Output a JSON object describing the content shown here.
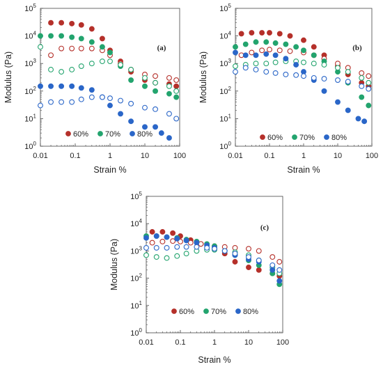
{
  "colors": {
    "s60": "#b5302a",
    "s70": "#23a46e",
    "s80": "#2a66c8",
    "axis": "#444444"
  },
  "chart_data": [
    {
      "type": "scatter",
      "panel_label": "(a)",
      "xlabel": "Strain %",
      "ylabel": "Modulus (Pa)",
      "x_scale": "log",
      "y_scale": "log",
      "xlim": [
        0.01,
        100
      ],
      "ylim": [
        1,
        100000
      ],
      "x_ticks": [
        "0.01",
        "0.1",
        "1",
        "10",
        "100"
      ],
      "y_ticks": [
        [
          "10",
          "0"
        ],
        [
          "10",
          "1"
        ],
        [
          "10",
          "2"
        ],
        [
          "10",
          "3"
        ],
        [
          "10",
          "4"
        ],
        [
          "10",
          "5"
        ]
      ],
      "legend": [
        "60%",
        "70%",
        "80%"
      ],
      "series": [
        {
          "name": "60%",
          "color_key": "s60",
          "filled": true,
          "x": [
            0.02,
            0.04,
            0.08,
            0.15,
            0.3,
            0.6,
            1,
            2,
            4,
            10,
            20,
            50,
            80
          ],
          "y": [
            30000,
            30000,
            28000,
            25000,
            18000,
            8000,
            3000,
            1200,
            500,
            250,
            200,
            180,
            150
          ]
        },
        {
          "name": "60%",
          "color_key": "s60",
          "filled": false,
          "x": [
            0.02,
            0.04,
            0.08,
            0.15,
            0.3,
            0.6,
            1,
            2,
            4,
            10,
            20,
            50,
            80
          ],
          "y": [
            2000,
            3500,
            3500,
            3500,
            3500,
            3000,
            2000,
            1000,
            600,
            400,
            350,
            300,
            250
          ]
        },
        {
          "name": "70%",
          "color_key": "s70",
          "filled": true,
          "x": [
            0.01,
            0.02,
            0.04,
            0.08,
            0.15,
            0.3,
            0.6,
            1,
            2,
            4,
            10,
            20,
            50,
            80
          ],
          "y": [
            10000,
            10000,
            10000,
            9000,
            8000,
            6000,
            4000,
            2500,
            800,
            250,
            150,
            100,
            80,
            60
          ]
        },
        {
          "name": "70%",
          "color_key": "s70",
          "filled": false,
          "x": [
            0.01,
            0.02,
            0.04,
            0.08,
            0.15,
            0.3,
            0.6,
            1,
            2,
            4,
            10,
            20,
            50,
            80
          ],
          "y": [
            4000,
            600,
            500,
            600,
            800,
            1000,
            1200,
            1200,
            900,
            600,
            300,
            200,
            150,
            100
          ]
        },
        {
          "name": "80%",
          "color_key": "s80",
          "filled": true,
          "x": [
            0.01,
            0.02,
            0.04,
            0.08,
            0.15,
            0.3,
            0.6,
            1,
            2,
            4,
            10,
            20,
            30,
            50
          ],
          "y": [
            150,
            150,
            150,
            150,
            130,
            110,
            60,
            30,
            15,
            8,
            5,
            5,
            3,
            2
          ]
        },
        {
          "name": "80%",
          "color_key": "s80",
          "filled": false,
          "x": [
            0.01,
            0.02,
            0.04,
            0.08,
            0.15,
            0.3,
            0.6,
            1,
            2,
            4,
            10,
            20,
            50,
            80
          ],
          "y": [
            30,
            40,
            40,
            40,
            50,
            60,
            60,
            55,
            45,
            35,
            25,
            22,
            15,
            10
          ]
        }
      ]
    },
    {
      "type": "scatter",
      "panel_label": "(b)",
      "xlabel": "Strain %",
      "ylabel": "Modulus (Pa)",
      "x_scale": "log",
      "y_scale": "log",
      "xlim": [
        0.01,
        100
      ],
      "ylim": [
        1,
        100000
      ],
      "x_ticks": [
        "0.01",
        "0.1",
        "1",
        "10",
        "100"
      ],
      "y_ticks": [
        [
          "10",
          "0"
        ],
        [
          "10",
          "1"
        ],
        [
          "10",
          "2"
        ],
        [
          "10",
          "3"
        ],
        [
          "10",
          "4"
        ],
        [
          "10",
          "5"
        ]
      ],
      "legend": [
        "60%",
        "70%",
        "80%"
      ],
      "series": [
        {
          "name": "60%",
          "color_key": "s60",
          "filled": true,
          "x": [
            0.015,
            0.03,
            0.06,
            0.1,
            0.2,
            0.4,
            1,
            2,
            4,
            10,
            20,
            50,
            80
          ],
          "y": [
            12000,
            13000,
            13000,
            13000,
            12000,
            10000,
            7000,
            4000,
            2000,
            800,
            400,
            200,
            150
          ]
        },
        {
          "name": "60%",
          "color_key": "s60",
          "filled": false,
          "x": [
            0.015,
            0.03,
            0.06,
            0.1,
            0.2,
            0.4,
            1,
            2,
            4,
            10,
            20,
            50,
            80
          ],
          "y": [
            2000,
            2500,
            3000,
            3200,
            3000,
            2800,
            2500,
            2000,
            1500,
            1000,
            700,
            450,
            350
          ]
        },
        {
          "name": "70%",
          "color_key": "s70",
          "filled": true,
          "x": [
            0.01,
            0.02,
            0.04,
            0.08,
            0.15,
            0.3,
            0.6,
            1,
            2,
            4,
            10,
            20,
            50,
            80
          ],
          "y": [
            4000,
            5000,
            6000,
            6000,
            5500,
            5000,
            4000,
            3000,
            2000,
            1200,
            500,
            200,
            60,
            30
          ]
        },
        {
          "name": "70%",
          "color_key": "s70",
          "filled": false,
          "x": [
            0.01,
            0.02,
            0.04,
            0.08,
            0.15,
            0.3,
            0.6,
            1,
            2,
            4,
            10,
            20,
            50,
            80
          ],
          "y": [
            800,
            900,
            1000,
            1000,
            1100,
            1200,
            1200,
            1100,
            1000,
            900,
            700,
            500,
            300,
            200
          ]
        },
        {
          "name": "80%",
          "color_key": "s80",
          "filled": true,
          "x": [
            0.01,
            0.02,
            0.04,
            0.08,
            0.15,
            0.3,
            0.6,
            1,
            2,
            4,
            10,
            20,
            40,
            60
          ],
          "y": [
            2500,
            2000,
            2000,
            2200,
            2000,
            1500,
            900,
            500,
            250,
            100,
            40,
            20,
            10,
            8
          ]
        },
        {
          "name": "80%",
          "color_key": "s80",
          "filled": false,
          "x": [
            0.01,
            0.02,
            0.04,
            0.08,
            0.15,
            0.3,
            0.6,
            1,
            2,
            4,
            10,
            20,
            50,
            80
          ],
          "y": [
            500,
            700,
            600,
            500,
            450,
            400,
            380,
            350,
            300,
            280,
            250,
            220,
            150,
            120
          ]
        }
      ]
    },
    {
      "type": "scatter",
      "panel_label": "(c)",
      "xlabel": "Strain %",
      "ylabel": "Modulus (Pa)",
      "x_scale": "log",
      "y_scale": "log",
      "xlim": [
        0.01,
        100
      ],
      "ylim": [
        1,
        100000
      ],
      "x_ticks": [
        "0.01",
        "0.1",
        "1",
        "10",
        "100"
      ],
      "y_ticks": [
        [
          "10",
          "0"
        ],
        [
          "10",
          "1"
        ],
        [
          "10",
          "2"
        ],
        [
          "10",
          "3"
        ],
        [
          "10",
          "4"
        ],
        [
          "10",
          "5"
        ]
      ],
      "legend": [
        "60%",
        "70%",
        "80%"
      ],
      "series": [
        {
          "name": "60%",
          "color_key": "s60",
          "filled": true,
          "x": [
            0.015,
            0.03,
            0.06,
            0.1,
            0.2,
            0.4,
            1,
            2,
            4,
            10,
            20,
            50,
            80
          ],
          "y": [
            5000,
            5000,
            4500,
            3500,
            2500,
            1800,
            1200,
            800,
            400,
            250,
            200,
            150,
            120
          ]
        },
        {
          "name": "60%",
          "color_key": "s60",
          "filled": false,
          "x": [
            0.015,
            0.03,
            0.06,
            0.1,
            0.2,
            0.4,
            1,
            2,
            4,
            10,
            20,
            50,
            80
          ],
          "y": [
            2000,
            2200,
            2300,
            2200,
            2000,
            1800,
            1500,
            1400,
            1300,
            1200,
            1000,
            600,
            400
          ]
        },
        {
          "name": "70%",
          "color_key": "s70",
          "filled": true,
          "x": [
            0.01,
            0.02,
            0.04,
            0.08,
            0.15,
            0.3,
            0.6,
            1,
            2,
            4,
            10,
            20,
            50,
            80
          ],
          "y": [
            3500,
            3500,
            3200,
            3000,
            2600,
            2200,
            1800,
            1500,
            1000,
            700,
            450,
            300,
            150,
            60
          ]
        },
        {
          "name": "70%",
          "color_key": "s70",
          "filled": false,
          "x": [
            0.01,
            0.02,
            0.04,
            0.08,
            0.15,
            0.3,
            0.6,
            1,
            2,
            4,
            10,
            20,
            50,
            80
          ],
          "y": [
            700,
            600,
            550,
            650,
            800,
            1000,
            1100,
            1100,
            1000,
            900,
            700,
            450,
            250,
            150
          ]
        },
        {
          "name": "80%",
          "color_key": "s80",
          "filled": true,
          "x": [
            0.01,
            0.02,
            0.04,
            0.08,
            0.15,
            0.3,
            0.6,
            1,
            2,
            4,
            10,
            20,
            50,
            80
          ],
          "y": [
            3000,
            3500,
            3200,
            2800,
            2400,
            2000,
            1600,
            1300,
            1000,
            700,
            500,
            400,
            200,
            80
          ]
        },
        {
          "name": "80%",
          "color_key": "s80",
          "filled": false,
          "x": [
            0.01,
            0.02,
            0.04,
            0.08,
            0.15,
            0.3,
            0.6,
            1,
            2,
            4,
            10,
            20,
            50,
            80
          ],
          "y": [
            1300,
            1300,
            1300,
            1400,
            1400,
            1400,
            1300,
            1200,
            1000,
            800,
            600,
            450,
            300,
            200
          ]
        }
      ]
    }
  ]
}
